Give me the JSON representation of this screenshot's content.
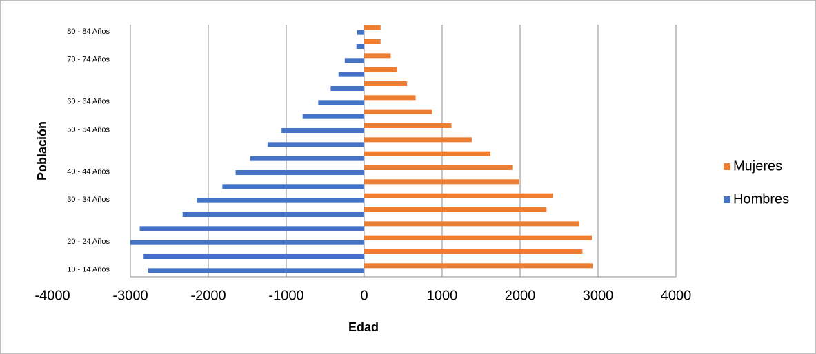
{
  "chart_data": {
    "type": "bar",
    "orientation": "horizontal",
    "x_label": "Edad",
    "y_label": "Población",
    "categories": [
      "10 - 14  Años",
      null,
      "20 - 24  Años",
      null,
      null,
      "30 - 34  Años",
      null,
      "40 - 44 Años",
      null,
      null,
      "50 - 54 Años",
      null,
      "60 - 64 Años",
      null,
      null,
      "70 - 74 Años",
      null,
      "80 - 84 Años"
    ],
    "series": [
      {
        "name": "Mujeres",
        "color": "#ed7d31",
        "values": [
          2930,
          2800,
          2920,
          2760,
          2340,
          2420,
          1990,
          1900,
          1620,
          1380,
          1120,
          870,
          660,
          550,
          420,
          340,
          210,
          210
        ]
      },
      {
        "name": "Hombres",
        "color": "#4472c4",
        "values": [
          -2770,
          -2830,
          -3000,
          -2880,
          -2330,
          -2150,
          -1820,
          -1650,
          -1460,
          -1240,
          -1060,
          -790,
          -590,
          -430,
          -330,
          -250,
          -100,
          -90
        ]
      }
    ],
    "xlim": [
      -4000,
      4000
    ],
    "xticks": [
      -4000,
      -3000,
      -2000,
      -1000,
      0,
      1000,
      2000,
      3000,
      4000
    ],
    "grid": true,
    "legend": "right"
  }
}
